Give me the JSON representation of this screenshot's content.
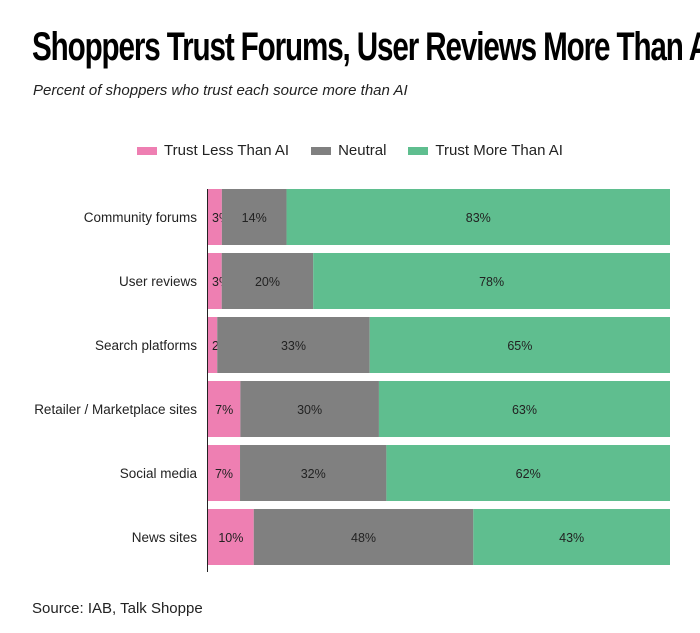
{
  "chart_data": {
    "type": "bar",
    "orientation": "horizontal",
    "stacked": true,
    "title": "Shoppers Trust Forums, User Reviews More Than AI",
    "subtitle": "Percent of shoppers who trust each source more than AI",
    "categories": [
      "Community forums",
      "User reviews",
      "Search platforms",
      "Retailer / Marketplace sites",
      "Social media",
      "News sites"
    ],
    "series": [
      {
        "name": "Trust Less Than AI",
        "color": "#ee7fb2",
        "values": [
          3,
          3,
          2,
          7,
          7,
          10
        ]
      },
      {
        "name": "Neutral",
        "color": "#808080",
        "values": [
          14,
          20,
          33,
          30,
          32,
          48
        ]
      },
      {
        "name": "Trust More Than AI",
        "color": "#5fbe8f",
        "values": [
          83,
          78,
          65,
          63,
          62,
          43
        ]
      }
    ],
    "value_suffix": "%",
    "xlim": [
      0,
      100
    ],
    "legend_position": "top-center",
    "source": "Source: IAB, Talk Shoppe"
  }
}
